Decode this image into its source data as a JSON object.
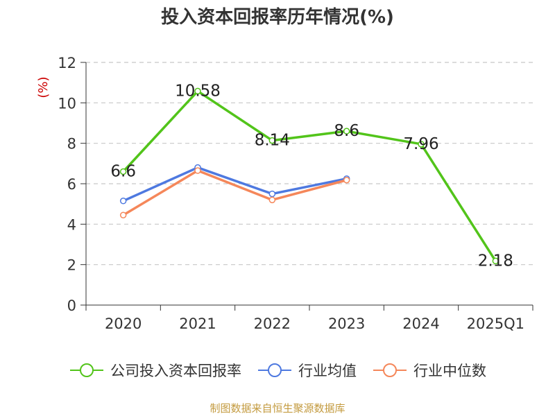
{
  "chart_data": {
    "type": "line",
    "title": "投入资本回报率历年情况(%)",
    "ylabel": "(%)",
    "xlabel": "",
    "categories": [
      "2020",
      "2021",
      "2022",
      "2023",
      "2024",
      "2025Q1"
    ],
    "ylim": [
      0,
      12
    ],
    "yticks": [
      0,
      2,
      4,
      6,
      8,
      10,
      12
    ],
    "grid": true,
    "legend_position": "bottom",
    "series": [
      {
        "name": "公司投入资本回报率",
        "color": "#52c41a",
        "values": [
          6.6,
          10.58,
          8.14,
          8.6,
          7.96,
          2.18
        ],
        "labels": [
          "6.6",
          "10.58",
          "8.14",
          "8.6",
          "7.96",
          "2.18"
        ]
      },
      {
        "name": "行业均值",
        "color": "#4e79e0",
        "values": [
          5.15,
          6.8,
          5.5,
          6.25,
          null,
          null
        ]
      },
      {
        "name": "行业中位数",
        "color": "#f5875a",
        "values": [
          4.45,
          6.65,
          5.2,
          6.18,
          null,
          null
        ]
      }
    ]
  },
  "source": "制图数据来自恒生聚源数据库"
}
